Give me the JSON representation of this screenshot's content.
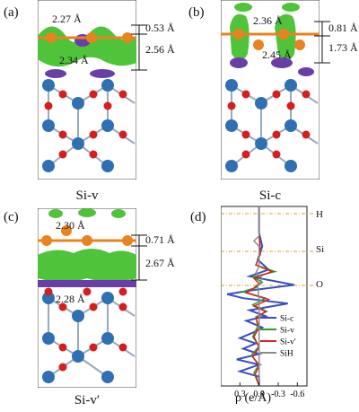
{
  "panels": {
    "a": {
      "tag": "(a)",
      "caption": "Si-v",
      "bond_upper": "2.27 Å",
      "bond_lower": "2.34 Å",
      "gap_small": "0.53 Å",
      "gap_large": "2.56 Å"
    },
    "b": {
      "tag": "(b)",
      "caption": "Si-c",
      "bond_upper": "2.36 Å",
      "bond_lower": "2.45 Å",
      "gap_small": "0.81 Å",
      "gap_large": "1.73 Å"
    },
    "c": {
      "tag": "(c)",
      "caption": "Si-v′",
      "bond_upper": "2.30 Å",
      "bond_lower": "2.28 Å",
      "gap_small": "0.71 Å",
      "gap_large": "2.67 Å"
    },
    "d": {
      "tag": "(d)"
    }
  },
  "colors": {
    "si_atom": "#e8831f",
    "o_atom": "#d61e1e",
    "bulk_atom": "#2f6fb3",
    "accumulation": "#4fc33a",
    "depletion": "#6a3ea8",
    "guide_line": "#d9a038"
  },
  "chart_data": {
    "type": "line",
    "orientation": "vertical",
    "xlabel": "ρ (e/Å)",
    "x_ticks": [
      "0.3",
      "0.0",
      "-0.3",
      "-0.6"
    ],
    "x_reversed": true,
    "xlim": [
      0.6,
      -0.75
    ],
    "atom_labels": [
      "H",
      "Si",
      "O"
    ],
    "series": [
      {
        "name": "Si-c",
        "color": "#3b4fc0",
        "points": [
          [
            0,
            0
          ],
          [
            0,
            40
          ],
          [
            -0.05,
            60
          ],
          [
            0.02,
            80
          ],
          [
            -0.15,
            95
          ],
          [
            0.15,
            105
          ],
          [
            -0.55,
            118
          ],
          [
            0.1,
            126
          ],
          [
            0.5,
            132
          ],
          [
            0.25,
            138
          ],
          [
            -0.45,
            146
          ],
          [
            0.15,
            156
          ],
          [
            -0.1,
            165
          ],
          [
            0.2,
            172
          ],
          [
            -0.05,
            182
          ],
          [
            0.1,
            190
          ],
          [
            0.3,
            198
          ],
          [
            0.05,
            206
          ],
          [
            0.25,
            214
          ],
          [
            0.0,
            222
          ],
          [
            0.35,
            230
          ],
          [
            0.0,
            238
          ],
          [
            0.3,
            248
          ],
          [
            0.0,
            256
          ],
          [
            0.0,
            270
          ]
        ]
      },
      {
        "name": "Si-v",
        "color": "#2e9a2e",
        "points": [
          [
            0,
            0
          ],
          [
            0,
            40
          ],
          [
            -0.02,
            70
          ],
          [
            0.05,
            88
          ],
          [
            -0.25,
            98
          ],
          [
            0.1,
            106
          ],
          [
            -0.05,
            114
          ],
          [
            0.05,
            122
          ],
          [
            0.25,
            128
          ],
          [
            -0.1,
            138
          ],
          [
            0.1,
            148
          ],
          [
            -0.12,
            158
          ],
          [
            0.05,
            166
          ],
          [
            0.02,
            180
          ],
          [
            0.1,
            196
          ],
          [
            0.0,
            210
          ],
          [
            0.12,
            224
          ],
          [
            0.0,
            238
          ],
          [
            0.08,
            250
          ],
          [
            0.0,
            270
          ]
        ]
      },
      {
        "name": "Si-v′",
        "color": "#d22424",
        "points": [
          [
            0,
            0
          ],
          [
            0,
            40
          ],
          [
            -0.02,
            72
          ],
          [
            0.05,
            88
          ],
          [
            -0.2,
            98
          ],
          [
            0.08,
            108
          ],
          [
            0.0,
            116
          ],
          [
            0.1,
            124
          ],
          [
            0.2,
            130
          ],
          [
            -0.15,
            140
          ],
          [
            0.08,
            150
          ],
          [
            -0.1,
            158
          ],
          [
            0.05,
            168
          ],
          [
            0.0,
            182
          ],
          [
            0.08,
            196
          ],
          [
            0.0,
            212
          ],
          [
            0.1,
            226
          ],
          [
            0.0,
            240
          ],
          [
            0.06,
            252
          ],
          [
            0.0,
            270
          ]
        ]
      },
      {
        "name": "SiH",
        "color": "#8c8c8c",
        "points": [
          [
            0,
            0
          ],
          [
            0,
            44
          ],
          [
            0.08,
            52
          ],
          [
            0,
            60
          ],
          [
            0,
            90
          ],
          [
            0.05,
            100
          ],
          [
            -0.05,
            108
          ],
          [
            0.02,
            120
          ],
          [
            0,
            140
          ],
          [
            0,
            270
          ]
        ]
      }
    ]
  }
}
